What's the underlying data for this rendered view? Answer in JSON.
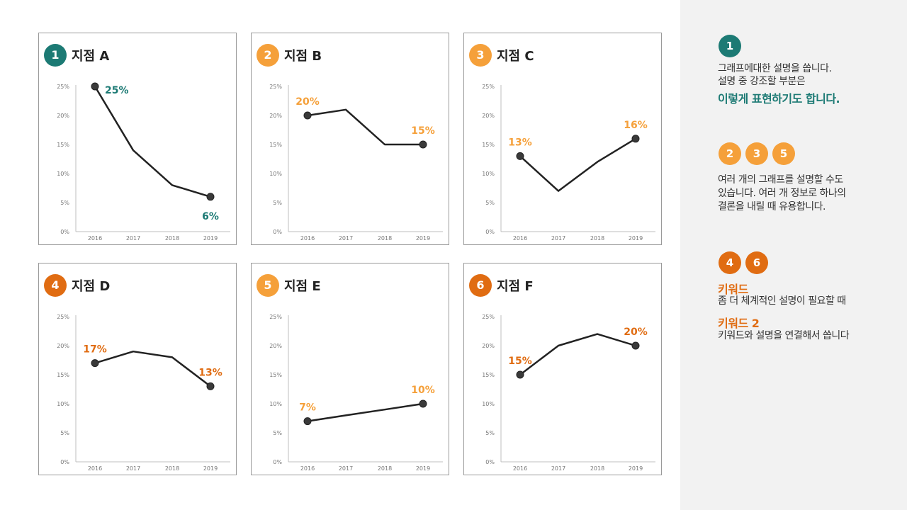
{
  "colors": {
    "teal": "#1c7a74",
    "orange_light": "#f5a03a",
    "orange_dark": "#e06c12",
    "line": "#222222",
    "axis": "#bfbfbf"
  },
  "chart_data": [
    {
      "type": "line",
      "badge": "1",
      "title": "지점 A",
      "color": "teal",
      "categories": [
        "2016",
        "2017",
        "2018",
        "2019"
      ],
      "values": [
        25,
        14,
        8,
        6
      ],
      "y_ticks": [
        "0%",
        "5%",
        "10%",
        "15%",
        "20%",
        "25%"
      ],
      "ylim": [
        0,
        25
      ],
      "labels": [
        {
          "index": 0,
          "text": "25%"
        },
        {
          "index": 3,
          "text": "6%"
        }
      ]
    },
    {
      "type": "line",
      "badge": "2",
      "title": "지점 B",
      "color": "orange_light",
      "categories": [
        "2016",
        "2017",
        "2018",
        "2019"
      ],
      "values": [
        20,
        21,
        15,
        15
      ],
      "y_ticks": [
        "0%",
        "5%",
        "10%",
        "15%",
        "20%",
        "25%"
      ],
      "ylim": [
        0,
        25
      ],
      "labels": [
        {
          "index": 0,
          "text": "20%"
        },
        {
          "index": 3,
          "text": "15%"
        }
      ]
    },
    {
      "type": "line",
      "badge": "3",
      "title": "지점 C",
      "color": "orange_light",
      "categories": [
        "2016",
        "2017",
        "2018",
        "2019"
      ],
      "values": [
        13,
        7,
        12,
        16
      ],
      "y_ticks": [
        "0%",
        "5%",
        "10%",
        "15%",
        "20%",
        "25%"
      ],
      "ylim": [
        0,
        25
      ],
      "labels": [
        {
          "index": 0,
          "text": "13%"
        },
        {
          "index": 3,
          "text": "16%"
        }
      ]
    },
    {
      "type": "line",
      "badge": "4",
      "title": "지점 D",
      "color": "orange_dark",
      "categories": [
        "2016",
        "2017",
        "2018",
        "2019"
      ],
      "values": [
        17,
        19,
        18,
        13
      ],
      "y_ticks": [
        "0%",
        "5%",
        "10%",
        "15%",
        "20%",
        "25%"
      ],
      "ylim": [
        0,
        25
      ],
      "labels": [
        {
          "index": 0,
          "text": "17%"
        },
        {
          "index": 3,
          "text": "13%"
        }
      ]
    },
    {
      "type": "line",
      "badge": "5",
      "title": "지점 E",
      "color": "orange_light",
      "categories": [
        "2016",
        "2017",
        "2018",
        "2019"
      ],
      "values": [
        7,
        8,
        9,
        10
      ],
      "y_ticks": [
        "0%",
        "5%",
        "10%",
        "15%",
        "20%",
        "25%"
      ],
      "ylim": [
        0,
        25
      ],
      "labels": [
        {
          "index": 0,
          "text": "7%"
        },
        {
          "index": 3,
          "text": "10%"
        }
      ]
    },
    {
      "type": "line",
      "badge": "6",
      "title": "지점 F",
      "color": "orange_dark",
      "categories": [
        "2016",
        "2017",
        "2018",
        "2019"
      ],
      "values": [
        15,
        20,
        22,
        20
      ],
      "y_ticks": [
        "0%",
        "5%",
        "10%",
        "15%",
        "20%",
        "25%"
      ],
      "ylim": [
        0,
        25
      ],
      "labels": [
        {
          "index": 0,
          "text": "15%"
        },
        {
          "index": 3,
          "text": "20%"
        }
      ]
    }
  ],
  "sidebar": {
    "section1": {
      "badges": [
        "1"
      ],
      "line1": "그래프에대한 설명을 씁니다.",
      "line2": "설명 중 강조할 부분은",
      "emphasis": "이렇게 표현하기도 합니다."
    },
    "section2": {
      "badges": [
        "2",
        "3",
        "5"
      ],
      "line1": "여러 개의 그래프를 설명할 수도",
      "line2": "있습니다. 여러 개 정보로 하나의",
      "line3": "결론을 내릴 때 유용합니다."
    },
    "section3": {
      "badges": [
        "4",
        "6"
      ],
      "keyword1": "키워드",
      "desc1": "좀 더 체계적인 설명이 필요할 때",
      "keyword2": "키워드 2",
      "desc2": "키워드와 설명을 연결해서 씁니다"
    }
  }
}
